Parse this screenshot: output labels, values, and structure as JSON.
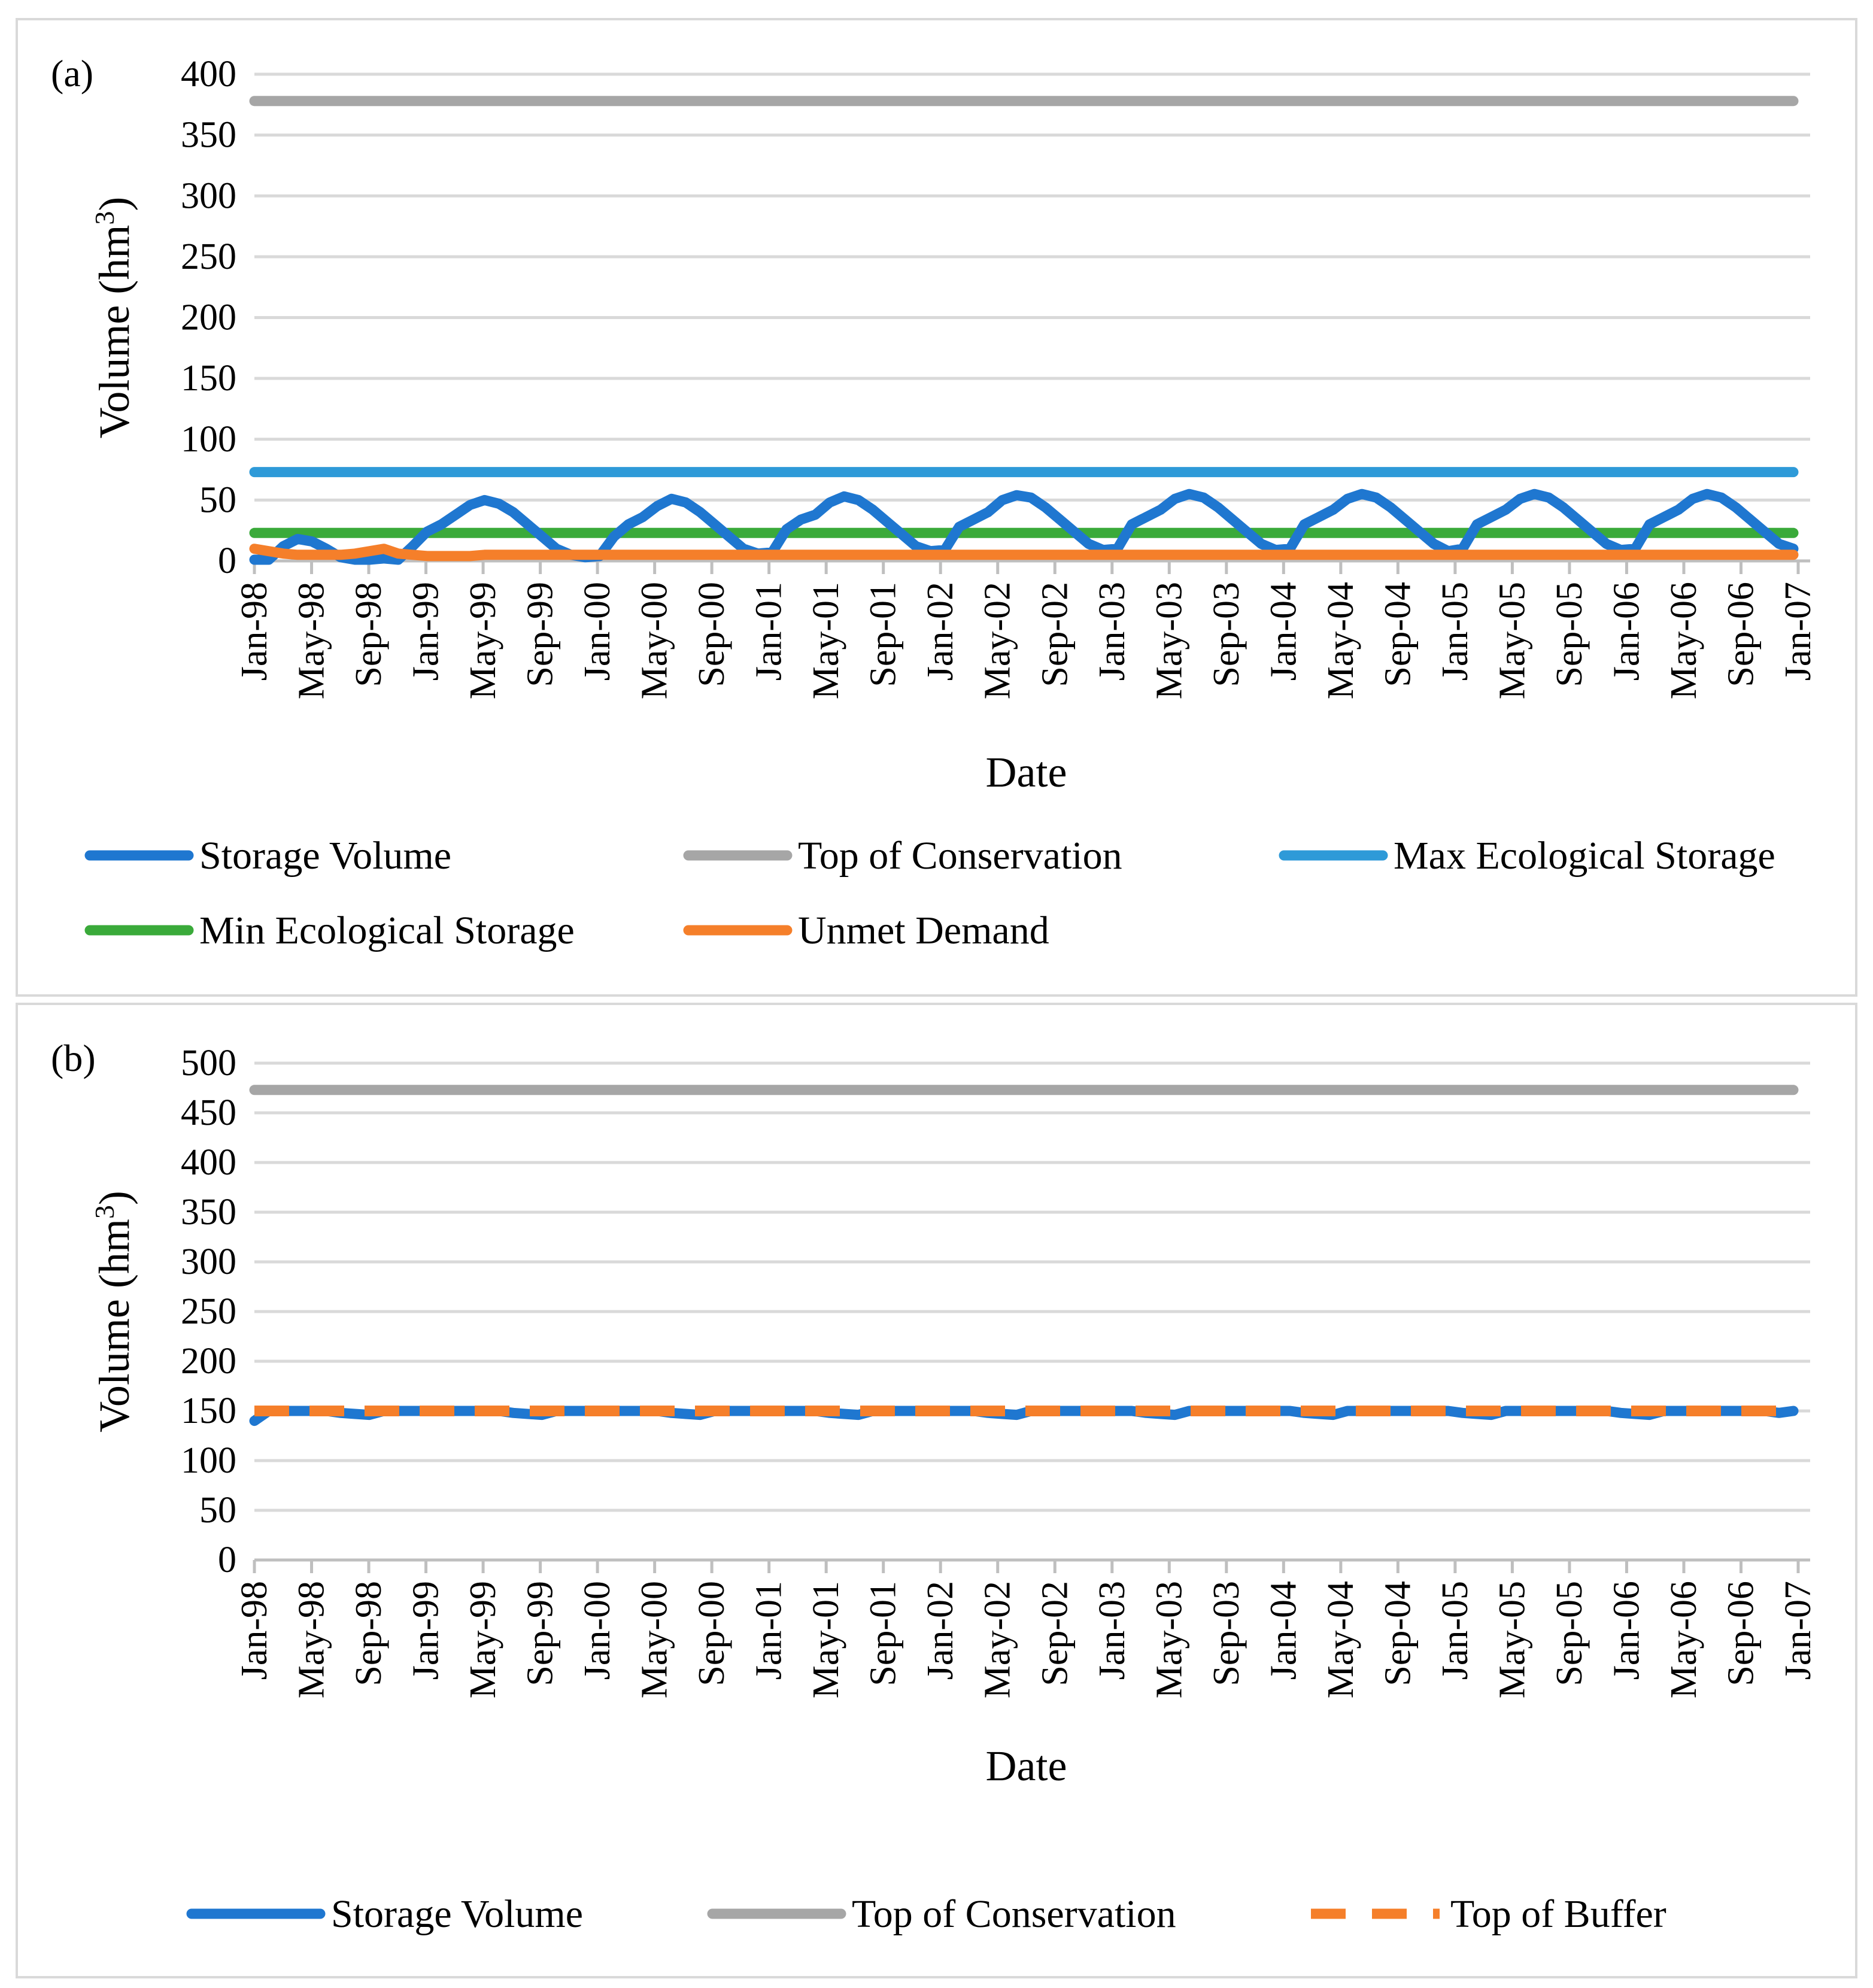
{
  "chart_data": [
    {
      "panel_label": "(a)",
      "type": "line",
      "xlabel": "Date",
      "ylabel": "Volume (hm",
      "ylabel_sup": "3",
      "ylabel_end": ")",
      "ylim": [
        0,
        400
      ],
      "yticks": [
        0,
        50,
        100,
        150,
        200,
        250,
        300,
        350,
        400
      ],
      "grid": true,
      "legend_position": "bottom",
      "xticks": [
        "Jan-98",
        "May-98",
        "Sep-98",
        "Jan-99",
        "May-99",
        "Sep-99",
        "Jan-00",
        "May-00",
        "Sep-00",
        "Jan-01",
        "May-01",
        "Sep-01",
        "Jan-02",
        "May-02",
        "Sep-02",
        "Jan-03",
        "May-03",
        "Sep-03",
        "Jan-04",
        "May-04",
        "Sep-04",
        "Jan-05",
        "May-05",
        "Sep-05",
        "Jan-06",
        "May-06",
        "Sep-06",
        "Jan-07"
      ],
      "series": [
        {
          "name": "Storage Volume",
          "color": "#1f77d0",
          "dash": false,
          "values": [
            1,
            1,
            12,
            18,
            16,
            10,
            3,
            1,
            1,
            2,
            1,
            12,
            24,
            30,
            38,
            46,
            50,
            47,
            40,
            30,
            20,
            10,
            5,
            3,
            4,
            20,
            30,
            36,
            45,
            51,
            48,
            40,
            30,
            20,
            10,
            6,
            7,
            26,
            34,
            38,
            48,
            53,
            50,
            42,
            32,
            22,
            12,
            8,
            9,
            28,
            34,
            40,
            50,
            54,
            52,
            44,
            34,
            24,
            14,
            9,
            10,
            30,
            36,
            42,
            51,
            55,
            52,
            44,
            34,
            24,
            14,
            9,
            10,
            30,
            36,
            42,
            51,
            55,
            52,
            44,
            34,
            24,
            14,
            8,
            10,
            30,
            36,
            42,
            51,
            55,
            52,
            44,
            34,
            24,
            14,
            9,
            10,
            30,
            36,
            42,
            51,
            55,
            52,
            44,
            34,
            24,
            14,
            10
          ]
        },
        {
          "name": "Top of Conservation",
          "color": "#a6a6a6",
          "dash": false,
          "constant": 378
        },
        {
          "name": "Max Ecological Storage",
          "color": "#2e9ad8",
          "dash": false,
          "constant": 73
        },
        {
          "name": "Min Ecological Storage",
          "color": "#3aaa3a",
          "dash": false,
          "constant": 23
        },
        {
          "name": "Unmet Demand",
          "color": "#f57f2a",
          "dash": false,
          "values": [
            10,
            8,
            6,
            5,
            5,
            5,
            5,
            6,
            8,
            10,
            6,
            5,
            4,
            4,
            4,
            4,
            5,
            5,
            5,
            5,
            5,
            5,
            5,
            5,
            5,
            5,
            5,
            5,
            5,
            5,
            5,
            5,
            5,
            5,
            5,
            5,
            5,
            5,
            5,
            5,
            5,
            5,
            5,
            5,
            5,
            5,
            5,
            5,
            5,
            5,
            5,
            5,
            5,
            5,
            5,
            5,
            5,
            5,
            5,
            5,
            5,
            5,
            5,
            5,
            5,
            5,
            5,
            5,
            5,
            5,
            5,
            5,
            5,
            5,
            5,
            5,
            5,
            5,
            5,
            5,
            5,
            5,
            5,
            5,
            5,
            5,
            5,
            5,
            5,
            5,
            5,
            5,
            5,
            5,
            5,
            5,
            5,
            5,
            5,
            5,
            5,
            5,
            5,
            5,
            5,
            5,
            5,
            5
          ]
        }
      ]
    },
    {
      "panel_label": "(b)",
      "type": "line",
      "xlabel": "Date",
      "ylabel": "Volume (hm",
      "ylabel_sup": "3",
      "ylabel_end": ")",
      "ylim": [
        0,
        500
      ],
      "yticks": [
        0,
        50,
        100,
        150,
        200,
        250,
        300,
        350,
        400,
        450,
        500
      ],
      "grid": true,
      "legend_position": "bottom",
      "xticks": [
        "Jan-98",
        "May-98",
        "Sep-98",
        "Jan-99",
        "May-99",
        "Sep-99",
        "Jan-00",
        "May-00",
        "Sep-00",
        "Jan-01",
        "May-01",
        "Sep-01",
        "Jan-02",
        "May-02",
        "Sep-02",
        "Jan-03",
        "May-03",
        "Sep-03",
        "Jan-04",
        "May-04",
        "Sep-04",
        "Jan-05",
        "May-05",
        "Sep-05",
        "Jan-06",
        "May-06",
        "Sep-06",
        "Jan-07"
      ],
      "series": [
        {
          "name": "Storage Volume",
          "color": "#1f77d0",
          "dash": false,
          "values": [
            140,
            150,
            150,
            150,
            150,
            150,
            148,
            147,
            146,
            150,
            150,
            150,
            150,
            150,
            150,
            150,
            150,
            150,
            148,
            147,
            146,
            150,
            150,
            150,
            150,
            150,
            150,
            150,
            150,
            148,
            147,
            146,
            150,
            150,
            150,
            150,
            150,
            150,
            150,
            150,
            148,
            147,
            146,
            150,
            150,
            150,
            150,
            150,
            150,
            150,
            150,
            148,
            147,
            146,
            150,
            150,
            150,
            150,
            150,
            150,
            150,
            150,
            148,
            147,
            146,
            150,
            150,
            150,
            150,
            150,
            150,
            150,
            150,
            148,
            147,
            146,
            150,
            150,
            150,
            150,
            150,
            150,
            150,
            150,
            148,
            147,
            146,
            150,
            150,
            150,
            150,
            150,
            150,
            150,
            150,
            148,
            147,
            146,
            150,
            150,
            150,
            150,
            150,
            150,
            150,
            150,
            148,
            150
          ]
        },
        {
          "name": "Top of Conservation",
          "color": "#a6a6a6",
          "dash": false,
          "constant": 473
        },
        {
          "name": "Top of Buffer",
          "color": "#f57f2a",
          "dash": true,
          "constant": 150
        }
      ]
    }
  ]
}
